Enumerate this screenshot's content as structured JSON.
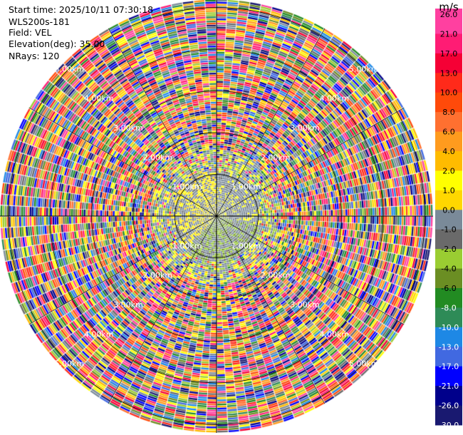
{
  "header": {
    "start_time": "Start time: 2025/10/11 07:30:18",
    "instrument": "WLS200s-181",
    "field": "Field: VEL",
    "elevation": "Elevation(deg): 35.00",
    "nrays": "NRays: 120"
  },
  "chart_data": {
    "type": "heatmap",
    "projection": "polar-ppi",
    "field": "VEL",
    "unit_label": "m/s",
    "n_rays": 120,
    "elevation_deg": 35.0,
    "range_rings_km": [
      1.0,
      2.0,
      3.0,
      4.0,
      5.0
    ],
    "ring_labels": [
      "1.00km",
      "2.00km",
      "3.00km",
      "4.00km",
      "5.00km"
    ],
    "max_range_km": 5.2,
    "colorbar": {
      "ticks": [
        "26.0",
        "21.0",
        "17.0",
        "13.0",
        "10.0",
        "8.0",
        "6.0",
        "4.0",
        "2.0",
        "1.0",
        "0.0",
        "-1.0",
        "-2.0",
        "-4.0",
        "-6.0",
        "-8.0",
        "-10.0",
        "-13.0",
        "-17.0",
        "-21.0",
        "-26.0",
        "-30.0"
      ],
      "colors": [
        "#ff40a0",
        "#ff1c74",
        "#f50035",
        "#ff2a1a",
        "#ff4a0a",
        "#ff7030",
        "#ff9b1e",
        "#ffbb00",
        "#ffff00",
        "#ffd700",
        "#7a8a99",
        "#6a6a6a",
        "#9acd32",
        "#6b8e23",
        "#228b22",
        "#2e8b57",
        "#1e88e5",
        "#4169e1",
        "#0000ff",
        "#00008b",
        "#191970"
      ]
    },
    "observations": {
      "inner_region_km": 1.1,
      "inner_dominant_values": [
        0.0,
        1.0,
        -2.0
      ],
      "inner_description_values": "near-zero velocities within about 1 km, mixed positive (south/west) and negative (north-east) values",
      "outer_region": "noisy, all values from -30 to 26 m/s beyond about 1.5 km"
    }
  }
}
